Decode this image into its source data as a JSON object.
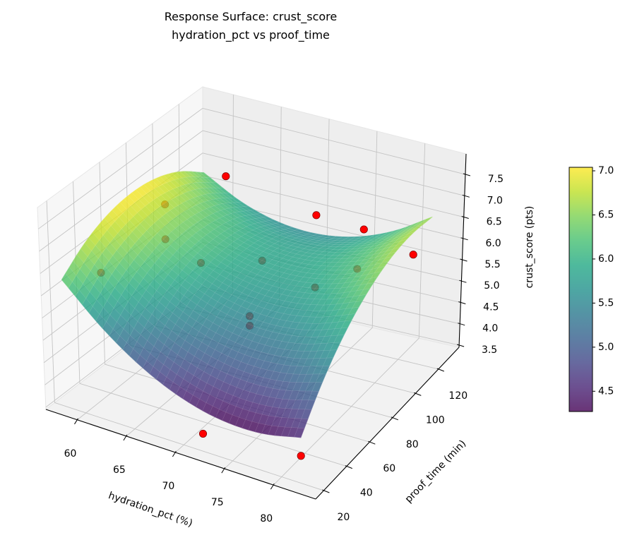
{
  "chart_data": {
    "type": "surface3d",
    "title": "Response Surface: crust_score",
    "subtitle": "hydration_pct vs proof_time",
    "xlabel": "hydration_pct (%)",
    "ylabel": "proof_time (min)",
    "zlabel": "crust_score (pts)",
    "xlim": [
      56.8,
      84.3
    ],
    "ylim": [
      13,
      138
    ],
    "zlim": [
      3.45,
      7.98
    ],
    "xticks": [
      60,
      65,
      70,
      75,
      80
    ],
    "yticks": [
      20,
      40,
      60,
      80,
      100,
      120
    ],
    "zticks": [
      3.5,
      4.0,
      4.5,
      5.0,
      5.5,
      6.0,
      6.5,
      7.0,
      7.5
    ],
    "grid": true,
    "view": {
      "elev": 30,
      "azim": -60
    },
    "surface": {
      "colormap": "viridis",
      "alpha": 0.8,
      "x": [
        58,
        62,
        66,
        70,
        74,
        78,
        82
      ],
      "y": [
        20,
        38,
        57,
        75,
        93,
        112,
        130
      ],
      "z": [
        [
          6.3,
          5.5,
          4.9,
          4.5,
          4.3,
          4.3,
          4.5
        ],
        [
          6.72,
          5.98,
          5.43,
          5.09,
          4.95,
          5.01,
          5.27
        ],
        [
          6.97,
          6.28,
          5.8,
          5.52,
          5.43,
          5.55,
          5.87
        ],
        [
          7.05,
          6.43,
          6.0,
          5.78,
          5.75,
          5.93,
          6.3
        ],
        [
          6.97,
          6.4,
          6.03,
          5.87,
          5.9,
          6.13,
          6.57
        ],
        [
          6.72,
          6.21,
          5.9,
          5.79,
          5.88,
          6.18,
          6.67
        ],
        [
          6.3,
          5.85,
          5.6,
          5.55,
          5.7,
          6.05,
          6.6
        ]
      ]
    },
    "points": {
      "color": "#ff0000",
      "edgecolor": "#7a0000",
      "data": [
        [
          72,
          20,
          3.85
        ],
        [
          82,
          20,
          4.08
        ],
        [
          61,
          125,
          6.49
        ],
        [
          70.5,
          125,
          6.13
        ],
        [
          75.5,
          125,
          6.08
        ],
        [
          79.5,
          135,
          5.45
        ],
        [
          58,
          50,
          5.8
        ],
        [
          58,
          100,
          6.24
        ],
        [
          58,
          100,
          5.46
        ],
        [
          65,
          75,
          5.92
        ],
        [
          69,
          93,
          5.79
        ],
        [
          70,
          75,
          5.03
        ],
        [
          70,
          75,
          4.81
        ],
        [
          74,
          97,
          5.38
        ],
        [
          76,
          116,
          5.43
        ]
      ]
    },
    "colorbar": {
      "range": [
        4.27,
        7.04
      ],
      "ticks": [
        4.5,
        5.0,
        5.5,
        6.0,
        6.5,
        7.0
      ]
    }
  }
}
